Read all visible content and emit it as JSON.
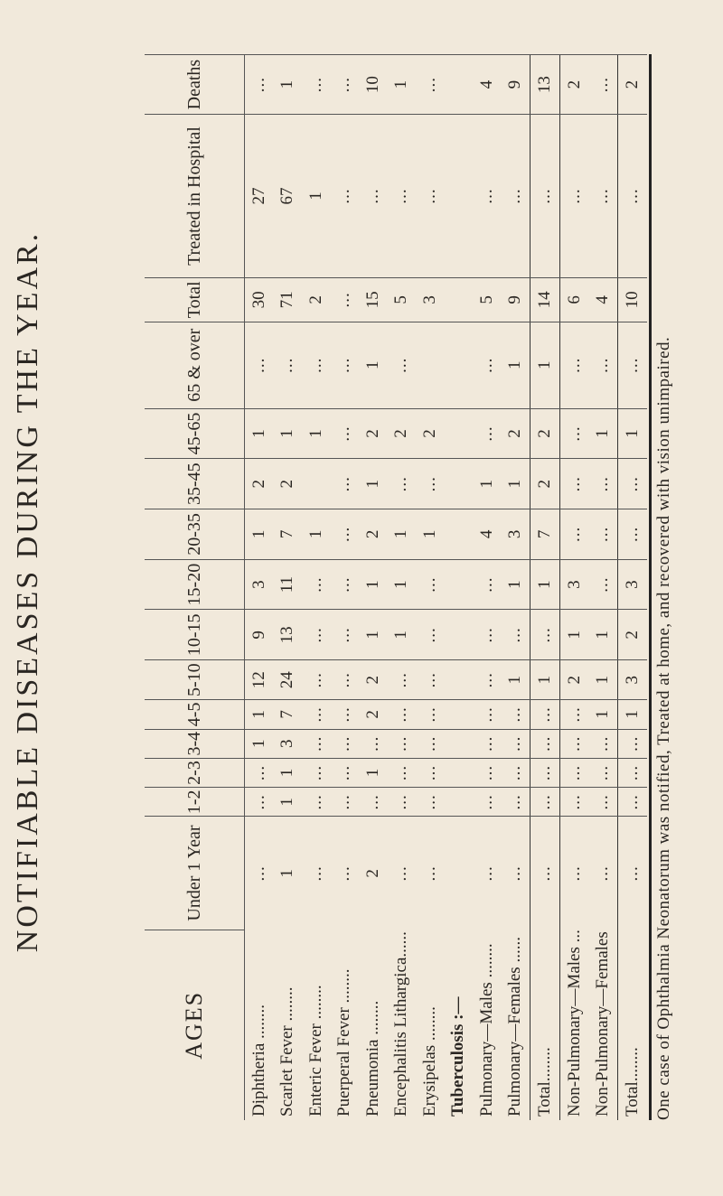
{
  "title": "NOTIFIABLE DISEASES DURING THE YEAR.",
  "footnote": "One case of Ophthalmia Neonatorum was notified, Treated at home, and recovered with vision unimpaired.",
  "columns": [
    "AGES",
    "Under 1 Year",
    "1-2",
    "2-3",
    "3-4",
    "4-5",
    "5-10",
    "10-15",
    "15-20",
    "20-35",
    "35-45",
    "45-65",
    "65 & over",
    "Total",
    "Treated in Hospital",
    "Deaths"
  ],
  "rows": [
    {
      "label": "Diphtheria ........",
      "values": [
        "...",
        "...",
        "...",
        "1",
        "1",
        "12",
        "9",
        "3",
        "1",
        "2",
        "1",
        "...",
        "30",
        "27",
        "..."
      ]
    },
    {
      "label": "Scarlet Fever ........",
      "values": [
        "1",
        "1",
        "1",
        "3",
        "7",
        "24",
        "13",
        "11",
        "7",
        "2",
        "1",
        "...",
        "71",
        "67",
        "1"
      ]
    },
    {
      "label": "Enteric Fever ........",
      "values": [
        "...",
        "...",
        "...",
        "...",
        "...",
        "...",
        "...",
        "...",
        "1",
        "",
        "1",
        "...",
        "2",
        "1",
        "..."
      ]
    },
    {
      "label": "Puerperal Fever ........",
      "values": [
        "...",
        "...",
        "...",
        "...",
        "...",
        "...",
        "...",
        "...",
        "...",
        "...",
        "...",
        "...",
        "...",
        "...",
        "..."
      ]
    },
    {
      "label": "Pneumonia ........",
      "values": [
        "2",
        "...",
        "1",
        "...",
        "2",
        "2",
        "1",
        "1",
        "2",
        "1",
        "2",
        "1",
        "15",
        "...",
        "10"
      ]
    },
    {
      "label": "Encephalitis Lithargica......",
      "values": [
        "...",
        "...",
        "...",
        "...",
        "...",
        "...",
        "1",
        "1",
        "1",
        "...",
        "2",
        "...",
        "5",
        "...",
        "1"
      ]
    },
    {
      "label": "Erysipelas ........",
      "values": [
        "...",
        "...",
        "...",
        "...",
        "...",
        "...",
        "...",
        "...",
        "1",
        "...",
        "2",
        "",
        "3",
        "...",
        "..."
      ]
    },
    {
      "label": "Tuberculosis :—",
      "head": true,
      "values": [
        "",
        "",
        "",
        "",
        "",
        "",
        "",
        "",
        "",
        "",
        "",
        "",
        "",
        "",
        ""
      ]
    },
    {
      "label": "Pulmonary—Males ........",
      "values": [
        "...",
        "...",
        "...",
        "...",
        "...",
        "...",
        "...",
        "...",
        "4",
        "1",
        "...",
        "...",
        "5",
        "...",
        "4"
      ]
    },
    {
      "label": "Pulmonary—Females ......",
      "values": [
        "...",
        "...",
        "...",
        "...",
        "...",
        "1",
        "...",
        "1",
        "3",
        "1",
        "2",
        "1",
        "9",
        "...",
        "9"
      ]
    },
    {
      "label": "Total........",
      "sep": true,
      "values": [
        "...",
        "...",
        "...",
        "...",
        "...",
        "1",
        "...",
        "1",
        "7",
        "2",
        "2",
        "1",
        "14",
        "...",
        "13"
      ]
    },
    {
      "label": "Non-Pulmonary—Males ...",
      "sep": true,
      "values": [
        "...",
        "...",
        "...",
        "...",
        "...",
        "2",
        "1",
        "3",
        "...",
        "...",
        "...",
        "...",
        "6",
        "...",
        "2"
      ]
    },
    {
      "label": "Non-Pulmonary—Females",
      "values": [
        "...",
        "...",
        "...",
        "...",
        "1",
        "1",
        "1",
        "...",
        "...",
        "...",
        "1",
        "...",
        "4",
        "...",
        "..."
      ]
    },
    {
      "label": "Total........",
      "sep": true,
      "values": [
        "...",
        "...",
        "...",
        "...",
        "1",
        "3",
        "2",
        "3",
        "...",
        "...",
        "1",
        "...",
        "10",
        "...",
        "2"
      ]
    }
  ]
}
